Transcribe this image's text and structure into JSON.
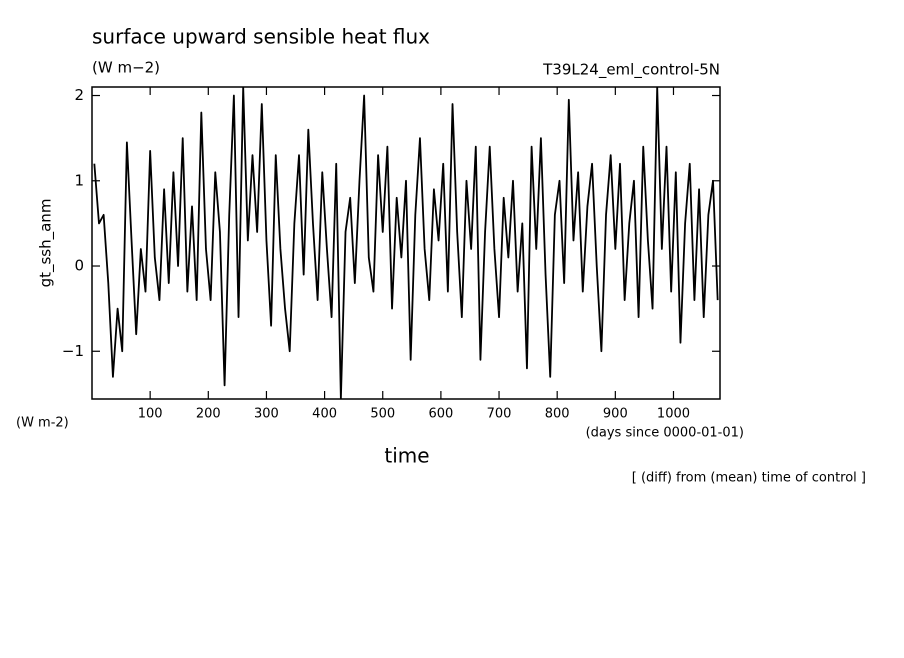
{
  "chart_data": {
    "type": "line",
    "title": "surface upward sensible heat flux",
    "units_top": "(W m−2)",
    "experiment": "T39L24_eml_control-5N",
    "y_label": "gt_ssh_anm",
    "units_bottom": "(W m-2)",
    "x_label": "time",
    "x_units": "(days since 0000-01-01)",
    "note": "[ (diff) from (mean) time of control ]",
    "xlim": [
      0,
      1080
    ],
    "ylim": [
      -1.56,
      2.1
    ],
    "xticks": [
      100,
      200,
      300,
      400,
      500,
      600,
      700,
      800,
      900,
      1000
    ],
    "yticks": [
      -1,
      0,
      1,
      2
    ],
    "x": [
      4,
      12,
      20,
      28,
      36,
      44,
      52,
      60,
      68,
      76,
      84,
      92,
      100,
      108,
      116,
      124,
      132,
      140,
      148,
      156,
      164,
      172,
      180,
      188,
      196,
      204,
      212,
      220,
      228,
      236,
      244,
      252,
      260,
      268,
      276,
      284,
      292,
      300,
      308,
      316,
      324,
      332,
      340,
      348,
      356,
      364,
      372,
      380,
      388,
      396,
      404,
      412,
      420,
      428,
      436,
      444,
      452,
      460,
      468,
      476,
      484,
      492,
      500,
      508,
      516,
      524,
      532,
      540,
      548,
      556,
      564,
      572,
      580,
      588,
      596,
      604,
      612,
      620,
      628,
      636,
      644,
      652,
      660,
      668,
      676,
      684,
      692,
      700,
      708,
      716,
      724,
      732,
      740,
      748,
      756,
      764,
      772,
      780,
      788,
      796,
      804,
      812,
      820,
      828,
      836,
      844,
      852,
      860,
      868,
      876,
      884,
      892,
      900,
      908,
      916,
      924,
      932,
      940,
      948,
      956,
      964,
      972,
      980,
      988,
      996,
      1004,
      1012,
      1020,
      1028,
      1036,
      1044,
      1052,
      1060,
      1068,
      1076
    ],
    "series": [
      {
        "color": "#000000",
        "values": [
          1.2,
          0.5,
          0.6,
          -0.2,
          -1.3,
          -0.5,
          -1.0,
          1.45,
          0.3,
          -0.8,
          0.2,
          -0.3,
          1.35,
          0.1,
          -0.4,
          0.9,
          -0.2,
          1.1,
          0.0,
          1.5,
          -0.3,
          0.7,
          -0.4,
          1.8,
          0.2,
          -0.4,
          1.1,
          0.4,
          -1.4,
          0.6,
          2.0,
          -0.6,
          2.1,
          0.3,
          1.3,
          0.4,
          1.9,
          0.3,
          -0.7,
          1.3,
          0.2,
          -0.5,
          -1.0,
          0.5,
          1.3,
          -0.1,
          1.6,
          0.5,
          -0.4,
          1.1,
          0.2,
          -0.6,
          1.2,
          -1.56,
          0.4,
          0.8,
          -0.2,
          1.0,
          2.0,
          0.1,
          -0.3,
          1.3,
          0.4,
          1.4,
          -0.5,
          0.8,
          0.1,
          1.0,
          -1.1,
          0.6,
          1.5,
          0.2,
          -0.4,
          0.9,
          0.3,
          1.2,
          -0.3,
          1.9,
          0.4,
          -0.6,
          1.0,
          0.2,
          1.4,
          -1.1,
          0.4,
          1.4,
          0.2,
          -0.6,
          0.8,
          0.1,
          1.0,
          -0.3,
          0.5,
          -1.2,
          1.4,
          0.2,
          1.5,
          -0.1,
          -1.3,
          0.6,
          1.0,
          -0.2,
          1.95,
          0.3,
          1.1,
          -0.3,
          0.7,
          1.2,
          0.0,
          -1.0,
          0.6,
          1.3,
          0.2,
          1.2,
          -0.4,
          0.5,
          1.0,
          -0.6,
          1.4,
          0.3,
          -0.5,
          2.1,
          0.2,
          1.4,
          -0.3,
          1.1,
          -0.9,
          0.5,
          1.2,
          -0.4,
          0.9,
          -0.6,
          0.6,
          1.0,
          -0.4
        ]
      }
    ]
  }
}
